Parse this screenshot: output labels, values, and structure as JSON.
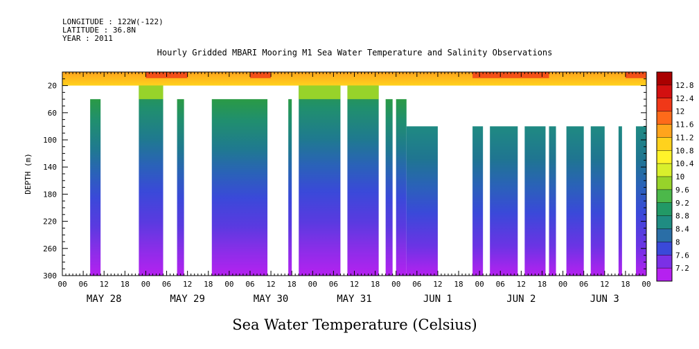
{
  "header": {
    "longitude": "LONGITUDE : 122W(-122)",
    "latitude": "LATITUDE : 36.8N",
    "year": "YEAR : 2011"
  },
  "chart_data": {
    "type": "heatmap",
    "title": "Hourly Gridded MBARI Mooring M1 Sea Water Temperature and Salinity Observations",
    "subtitle": "Sea Water Temperature (Celsius)",
    "ylabel": "DEPTH (m)",
    "xlabel": "",
    "y_reversed": true,
    "ylim": [
      300,
      0
    ],
    "yticks": [
      20,
      60,
      100,
      140,
      180,
      220,
      260,
      300
    ],
    "xlim_hours": [
      0,
      168
    ],
    "xticks_hours": [
      "00",
      "06",
      "12",
      "18",
      "00",
      "06",
      "12",
      "18",
      "00",
      "06",
      "12",
      "18",
      "00",
      "06",
      "12",
      "18",
      "00",
      "06",
      "12",
      "18",
      "00",
      "06",
      "12",
      "18",
      "00",
      "06",
      "12",
      "18",
      "00"
    ],
    "day_labels": [
      "MAY 28",
      "MAY 29",
      "MAY 30",
      "MAY 31",
      "JUN  1",
      "JUN  2",
      "JUN  3"
    ],
    "colorbar": {
      "levels": [
        12.8,
        12.4,
        12,
        11.6,
        11.2,
        10.8,
        10.4,
        10,
        9.6,
        9.2,
        8.8,
        8.4,
        8,
        7.6,
        7.2
      ],
      "colors": [
        "#aa0000",
        "#d31010",
        "#f03818",
        "#fe6a1a",
        "#ffa41c",
        "#ffd21d",
        "#fff32a",
        "#d9ef2c",
        "#97d32a",
        "#4cb84a",
        "#229966",
        "#1f8c82",
        "#2a6ea6",
        "#3a49d9",
        "#7b30e6",
        "#b521f0"
      ]
    },
    "data_columns_hours": [
      {
        "start": 8,
        "end": 11,
        "top_depth": 40
      },
      {
        "start": 22,
        "end": 29,
        "top_depth": 20
      },
      {
        "start": 33,
        "end": 35,
        "top_depth": 40
      },
      {
        "start": 43,
        "end": 59,
        "top_depth": 40
      },
      {
        "start": 65,
        "end": 66,
        "top_depth": 40
      },
      {
        "start": 68,
        "end": 80,
        "top_depth": 20
      },
      {
        "start": 82,
        "end": 91,
        "top_depth": 20
      },
      {
        "start": 93,
        "end": 95,
        "top_depth": 40
      },
      {
        "start": 96,
        "end": 99,
        "top_depth": 40
      },
      {
        "start": 99,
        "end": 108,
        "top_depth": 80
      },
      {
        "start": 118,
        "end": 121,
        "top_depth": 80
      },
      {
        "start": 123,
        "end": 131,
        "top_depth": 80
      },
      {
        "start": 133,
        "end": 139,
        "top_depth": 80
      },
      {
        "start": 140,
        "end": 142,
        "top_depth": 80
      },
      {
        "start": 145,
        "end": 150,
        "top_depth": 80
      },
      {
        "start": 152,
        "end": 156,
        "top_depth": 80
      },
      {
        "start": 160,
        "end": 161,
        "top_depth": 80
      },
      {
        "start": 165,
        "end": 168,
        "top_depth": 80
      }
    ],
    "surface_band_depth": [
      0,
      20
    ],
    "surface_warm_hours": [
      [
        24,
        36
      ],
      [
        54,
        60
      ],
      [
        118,
        140
      ],
      [
        162,
        168
      ]
    ]
  }
}
